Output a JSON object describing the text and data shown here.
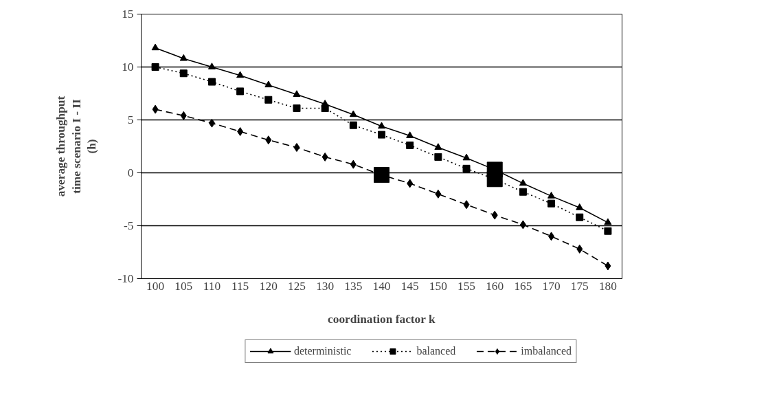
{
  "chart_data": {
    "type": "line",
    "xlabel": "coordination factor k",
    "ylabel": "average throughput\ntime scenario I - II\n(h)",
    "categories": [
      "100",
      "105",
      "110",
      "115",
      "120",
      "125",
      "130",
      "135",
      "140",
      "145",
      "150",
      "155",
      "160",
      "165",
      "170",
      "175",
      "180"
    ],
    "ylim": [
      -10,
      15
    ],
    "yticks": [
      -10,
      -5,
      0,
      5,
      10,
      15
    ],
    "grid": "y",
    "legend": "bottom",
    "series": [
      {
        "name": "deterministic",
        "color": "#000000",
        "marker": "triangle",
        "line_style": "solid",
        "values": [
          11.8,
          10.8,
          10.0,
          9.2,
          8.3,
          7.4,
          6.5,
          5.5,
          4.4,
          3.5,
          2.4,
          1.4,
          0.3,
          -1.0,
          -2.2,
          -3.3,
          -4.7
        ]
      },
      {
        "name": "balanced",
        "color": "#000000",
        "marker": "square",
        "line_style": "dotted",
        "values": [
          10.0,
          9.4,
          8.6,
          7.7,
          6.9,
          6.1,
          6.1,
          4.5,
          3.6,
          2.6,
          1.5,
          0.4,
          -0.6,
          -1.8,
          -2.9,
          -4.2,
          -5.5
        ]
      },
      {
        "name": "imbalanced",
        "color": "#000000",
        "marker": "diamond",
        "line_style": "dashed",
        "values": [
          6.0,
          5.4,
          4.7,
          3.9,
          3.1,
          2.4,
          1.5,
          0.8,
          -0.2,
          -1.0,
          -2.0,
          -3.0,
          -4.0,
          -4.9,
          -6.0,
          -7.2,
          -8.8
        ]
      },
      {
        "type": "scatter",
        "color": "#000000",
        "marker": "square",
        "x": [
          "140",
          "160",
          "160"
        ],
        "values": [
          -0.2,
          0.3,
          -0.6
        ]
      }
    ]
  }
}
